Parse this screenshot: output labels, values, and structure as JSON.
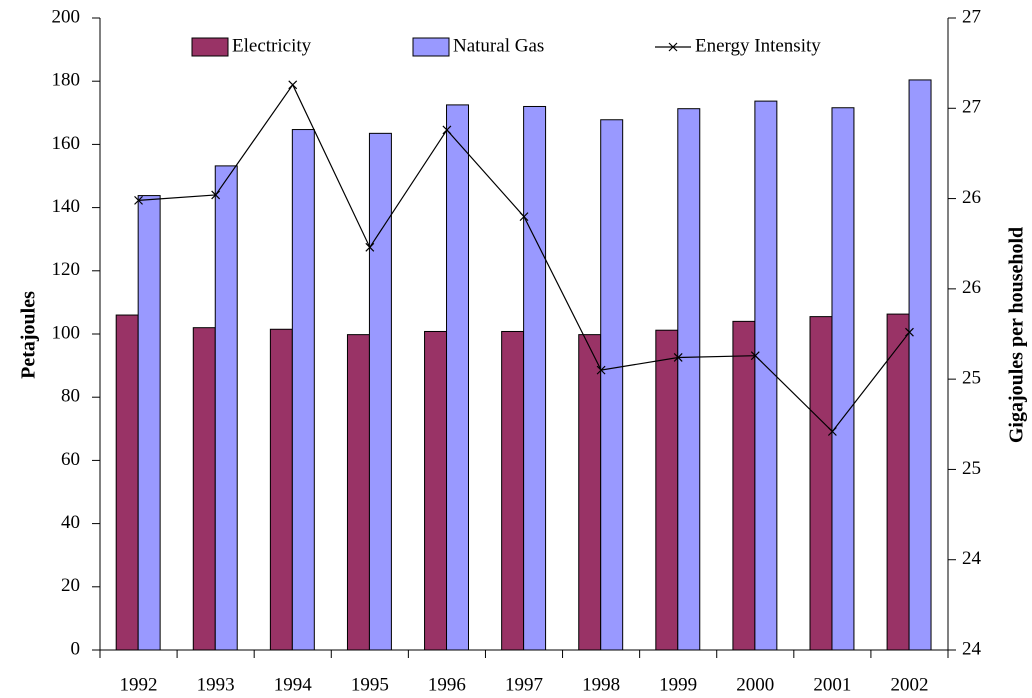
{
  "chart_data": {
    "type": "bar",
    "categories": [
      "1992",
      "1993",
      "1994",
      "1995",
      "1996",
      "1997",
      "1998",
      "1999",
      "2000",
      "2001",
      "2002"
    ],
    "series": [
      {
        "name": "Electricity",
        "color": "#993366",
        "values": [
          106,
          102,
          101.5,
          99.8,
          100.8,
          100.8,
          99.8,
          101.2,
          104,
          105.5,
          106.3
        ]
      },
      {
        "name": "Natural Gas",
        "color": "#9999ff",
        "values": [
          143.8,
          153.2,
          164.7,
          163.5,
          172.5,
          172,
          167.8,
          171.3,
          173.7,
          171.6,
          180.4
        ]
      },
      {
        "name": "Energy Intensity",
        "type": "line",
        "axis": "y2",
        "color": "#000000",
        "values": [
          26.29,
          26.32,
          26.93,
          26.03,
          26.68,
          26.2,
          25.35,
          25.42,
          25.43,
          25.01,
          25.56
        ]
      }
    ],
    "ylabel": "Petajoules",
    "y2label": "Gigajoules per household",
    "ylim": [
      0,
      200
    ],
    "yticks": [
      0,
      20,
      40,
      60,
      80,
      100,
      120,
      140,
      160,
      180,
      200
    ],
    "y2lim": [
      23.8,
      27.3
    ],
    "y2ticks": [
      {
        "value": 23.8,
        "label": "24"
      },
      {
        "value": 24.3,
        "label": "24"
      },
      {
        "value": 24.8,
        "label": "25"
      },
      {
        "value": 25.3,
        "label": "25"
      },
      {
        "value": 25.8,
        "label": "26"
      },
      {
        "value": 26.3,
        "label": "26"
      },
      {
        "value": 26.8,
        "label": "27"
      },
      {
        "value": 27.3,
        "label": "27"
      }
    ],
    "legend": "top",
    "grid": false
  }
}
